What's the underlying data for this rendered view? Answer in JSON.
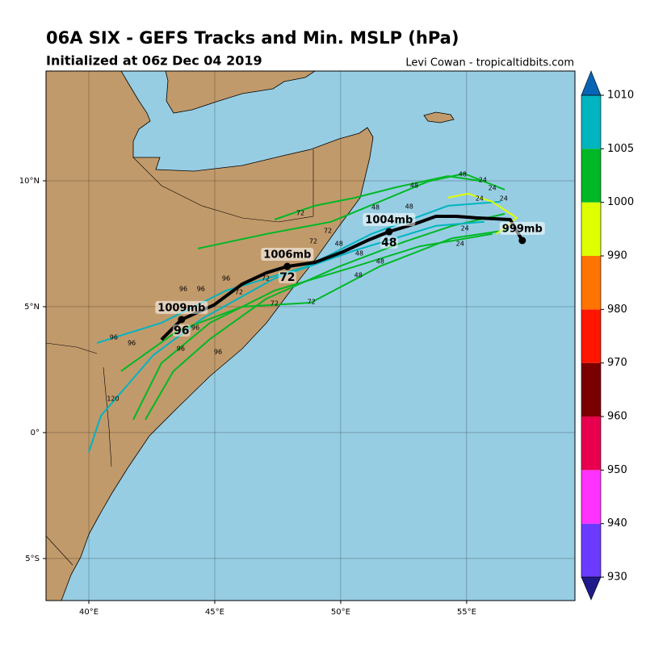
{
  "chart_data": {
    "type": "track-map",
    "title": "06A SIX - GEFS Tracks and Min. MSLP (hPa)",
    "subtitle": "Initialized at 06z Dec 04 2019",
    "credit": "Levi Cowan - tropicaltidbits.com",
    "xlim": [
      38.3,
      59.3
    ],
    "ylim": [
      -6.67,
      14.36
    ],
    "xticks": [
      {
        "value": 40,
        "label": "40°E"
      },
      {
        "value": 45,
        "label": "45°E"
      },
      {
        "value": 50,
        "label": "50°E"
      },
      {
        "value": 55,
        "label": "55°E"
      }
    ],
    "yticks": [
      {
        "value": 10,
        "label": "10°N"
      },
      {
        "value": 5,
        "label": "5°N"
      },
      {
        "value": 0,
        "label": "0°"
      },
      {
        "value": -5,
        "label": "5°S"
      }
    ],
    "grid": true,
    "tracks": [
      {
        "color": "#00b825",
        "lon": [
          42.24,
          43.36,
          44.81,
          47.05,
          49.94,
          52.5,
          54.42,
          56.51
        ],
        "lat": [
          0.51,
          2.44,
          3.72,
          5.32,
          6.6,
          7.57,
          8.21,
          8.69
        ]
      },
      {
        "color": "#00b4c0",
        "lon": [
          40.32,
          42.88,
          45.45,
          48.65,
          51.22,
          54.26,
          56.35
        ],
        "lat": [
          3.56,
          4.36,
          5.64,
          6.6,
          7.89,
          9.01,
          9.17
        ]
      },
      {
        "color": "#00b825",
        "lon": [
          44.33,
          47.05,
          49.61,
          51.54,
          53.46,
          54.9,
          56.51
        ],
        "lat": [
          7.31,
          7.89,
          8.37,
          9.17,
          9.97,
          10.29,
          9.65
        ]
      },
      {
        "color": "#00b825",
        "lon": [
          41.76,
          42.88,
          44.81,
          47.37,
          50.58,
          53.14,
          56.02
        ],
        "lat": [
          0.51,
          2.76,
          4.36,
          5.64,
          6.6,
          7.4,
          7.89
        ]
      },
      {
        "color": "#00b4c0",
        "lon": [
          40.0,
          40.48,
          42.56,
          44.49,
          47.37,
          50.58,
          53.78,
          55.7
        ],
        "lat": [
          -0.77,
          0.67,
          3.08,
          4.52,
          6.12,
          7.24,
          8.21,
          8.37
        ]
      },
      {
        "color": "#00b825",
        "lon": [
          41.28,
          43.52,
          46.09,
          48.81,
          51.54,
          54.42,
          56.67
        ],
        "lat": [
          2.44,
          4.04,
          5.0,
          5.16,
          6.6,
          7.72,
          8.05
        ]
      },
      {
        "color": "#deff00",
        "lon": [
          54.26,
          55.06,
          56.02,
          56.99,
          56.18
        ],
        "lat": [
          9.33,
          9.49,
          9.17,
          8.53,
          7.89
        ]
      },
      {
        "color": "#00b825",
        "lon": [
          47.37,
          48.97,
          50.58,
          52.18,
          54.26,
          55.7
        ],
        "lat": [
          8.46,
          9.01,
          9.33,
          9.74,
          10.19,
          9.97
        ]
      }
    ],
    "hour_labels": [
      {
        "hour": 96,
        "lon": 43.75,
        "lat": 5.71
      },
      {
        "hour": 96,
        "lon": 44.45,
        "lat": 5.71
      },
      {
        "hour": 96,
        "lon": 45.45,
        "lat": 6.12
      },
      {
        "hour": 96,
        "lon": 40.99,
        "lat": 3.78
      },
      {
        "hour": 96,
        "lon": 41.7,
        "lat": 3.56
      },
      {
        "hour": 96,
        "lon": 44.23,
        "lat": 4.17
      },
      {
        "hour": 96,
        "lon": 43.65,
        "lat": 3.33
      },
      {
        "hour": 96,
        "lon": 45.13,
        "lat": 3.21
      },
      {
        "hour": 72,
        "lon": 48.4,
        "lat": 8.72
      },
      {
        "hour": 72,
        "lon": 49.49,
        "lat": 8.01
      },
      {
        "hour": 72,
        "lon": 48.91,
        "lat": 7.6
      },
      {
        "hour": 72,
        "lon": 47.02,
        "lat": 6.12
      },
      {
        "hour": 72,
        "lon": 45.96,
        "lat": 5.58
      },
      {
        "hour": 72,
        "lon": 47.37,
        "lat": 5.13
      },
      {
        "hour": 72,
        "lon": 48.84,
        "lat": 5.19
      },
      {
        "hour": 48,
        "lon": 52.92,
        "lat": 9.81
      },
      {
        "hour": 48,
        "lon": 51.38,
        "lat": 8.94
      },
      {
        "hour": 48,
        "lon": 52.72,
        "lat": 8.98
      },
      {
        "hour": 48,
        "lon": 49.93,
        "lat": 7.5
      },
      {
        "hour": 48,
        "lon": 50.74,
        "lat": 7.12
      },
      {
        "hour": 48,
        "lon": 51.57,
        "lat": 6.8
      },
      {
        "hour": 48,
        "lon": 50.7,
        "lat": 6.25
      },
      {
        "hour": 48,
        "lon": 54.84,
        "lat": 10.26
      },
      {
        "hour": 24,
        "lon": 55.64,
        "lat": 10.03
      },
      {
        "hour": 24,
        "lon": 56.02,
        "lat": 9.71
      },
      {
        "hour": 24,
        "lon": 55.51,
        "lat": 9.3
      },
      {
        "hour": 24,
        "lon": 56.47,
        "lat": 9.3
      },
      {
        "hour": 24,
        "lon": 54.93,
        "lat": 8.11
      },
      {
        "hour": 24,
        "lon": 54.74,
        "lat": 7.5
      },
      {
        "hour": 120,
        "lon": 40.96,
        "lat": 1.35
      }
    ],
    "mean_track": {
      "color": "#000000",
      "lon": [
        42.88,
        43.68,
        44.97,
        46.09,
        47.05,
        47.88,
        48.97,
        50.09,
        51.06,
        51.92,
        52.98,
        53.78,
        54.58,
        55.38,
        56.73,
        57.21
      ],
      "lat": [
        3.69,
        4.49,
        5.07,
        5.9,
        6.35,
        6.6,
        6.76,
        7.18,
        7.63,
        7.98,
        8.3,
        8.59,
        8.59,
        8.53,
        8.46,
        7.63
      ]
    },
    "mean_labels": [
      {
        "lon": 43.68,
        "lat": 4.49,
        "pressure": "1009mb",
        "hour": 96
      },
      {
        "lon": 47.88,
        "lat": 6.6,
        "pressure": "1006mb",
        "hour": 72
      },
      {
        "lon": 51.92,
        "lat": 7.98,
        "pressure": "1004mb",
        "hour": 48
      },
      {
        "lon": 57.21,
        "lat": 7.63,
        "pressure": "999mb"
      }
    ],
    "colorbar": {
      "ticks": [
        930,
        940,
        950,
        960,
        970,
        980,
        990,
        1000,
        1005,
        1010
      ],
      "colors": [
        "#6a3bff",
        "#ff33ff",
        "#e8004f",
        "#7a0000",
        "#ff1500",
        "#ff7300",
        "#deff00",
        "#00b825",
        "#00b4c0"
      ],
      "under": "#1f1a8a",
      "over": "#0a64b5"
    }
  }
}
